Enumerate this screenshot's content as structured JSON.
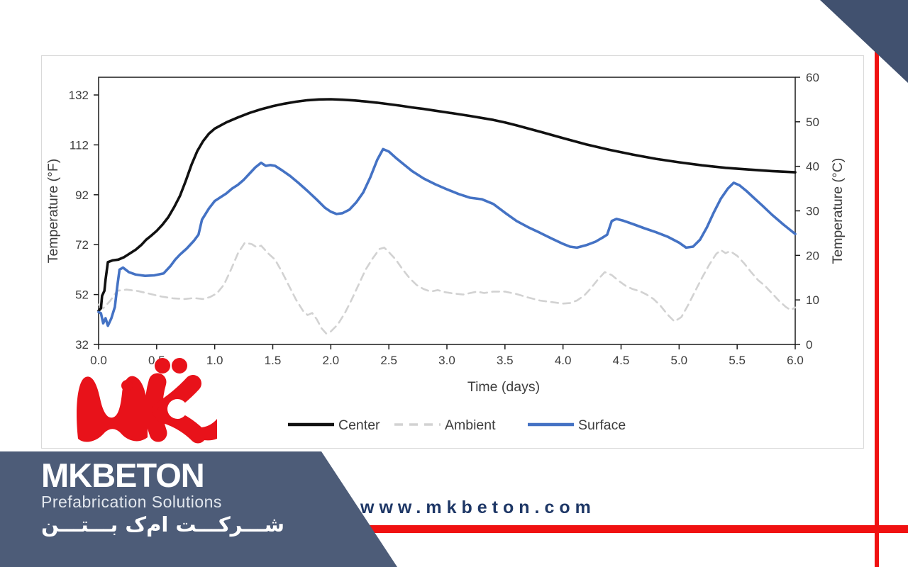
{
  "page": {
    "background": "#ffffff"
  },
  "decor": {
    "accent_red": "#f01111",
    "corner_triangle_color": "#41516f",
    "banner_color": "#4d5c78",
    "card_border_color": "#d9d9d9"
  },
  "logo": {
    "label": "MK logo",
    "color": "#e8121a"
  },
  "footer": {
    "brand": "MKBETON",
    "tagline": "Prefabrication Solutions",
    "persian_name": "شـــرکـــت ام‌ک بـــتـــن",
    "website": "www.mkbeton.com",
    "website_color": "#1e3766"
  },
  "chart_data": {
    "type": "line",
    "title": "",
    "xlabel": "Time (days)",
    "ylabel_left": "Temperature (°F)",
    "ylabel_right": "Temperature (°C)",
    "x_range": [
      0,
      6
    ],
    "y_left_range": [
      32,
      136.5
    ],
    "y_right_range": [
      0,
      60
    ],
    "x_tick_labels": [
      "0.0",
      "0.5",
      "1.0",
      "1.5",
      "2.0",
      "2.5",
      "3.0",
      "3.5",
      "4.0",
      "4.5",
      "5.0",
      "5.5",
      "6.0"
    ],
    "y_left_ticks": [
      32,
      52,
      72,
      92,
      112,
      132
    ],
    "y_right_ticks": [
      0,
      10,
      20,
      30,
      40,
      50,
      60
    ],
    "grid": false,
    "legend_position": "bottom",
    "y_units": "°F",
    "series": [
      {
        "name": "Ambient",
        "color": "#d2d2d2",
        "style": "dashed",
        "width": 2.6,
        "x": [
          0,
          0.04,
          0.1,
          0.16,
          0.24,
          0.34,
          0.44,
          0.54,
          0.64,
          0.74,
          0.82,
          0.9,
          0.96,
          1.02,
          1.08,
          1.14,
          1.2,
          1.26,
          1.32,
          1.36,
          1.4,
          1.46,
          1.52,
          1.58,
          1.64,
          1.7,
          1.76,
          1.8,
          1.84,
          1.88,
          1.92,
          1.96,
          2.0,
          2.06,
          2.12,
          2.18,
          2.24,
          2.3,
          2.36,
          2.42,
          2.46,
          2.5,
          2.56,
          2.62,
          2.68,
          2.74,
          2.8,
          2.86,
          2.92,
          2.98,
          3.06,
          3.14,
          3.2,
          3.26,
          3.32,
          3.4,
          3.5,
          3.6,
          3.7,
          3.8,
          3.9,
          4.0,
          4.06,
          4.12,
          4.18,
          4.24,
          4.3,
          4.36,
          4.42,
          4.48,
          4.54,
          4.6,
          4.66,
          4.72,
          4.78,
          4.84,
          4.9,
          4.96,
          5.02,
          5.08,
          5.14,
          5.2,
          5.26,
          5.32,
          5.36,
          5.4,
          5.44,
          5.5,
          5.56,
          5.62,
          5.68,
          5.74,
          5.8,
          5.86,
          5.92,
          5.96,
          6.0
        ],
        "y": [
          48,
          46.5,
          49.5,
          53.5,
          54,
          53.4,
          52.3,
          51.2,
          50.5,
          50.2,
          50.6,
          50.2,
          51,
          52.5,
          56,
          62,
          68.5,
          72.8,
          72.2,
          71,
          71.6,
          68.5,
          66,
          61,
          55.5,
          50,
          45.5,
          43.8,
          44.6,
          42,
          38.5,
          36.4,
          37.2,
          40,
          44.5,
          50,
          56,
          62,
          66.5,
          70.3,
          70.8,
          69,
          66,
          62,
          58.5,
          55.8,
          54.2,
          53.2,
          53.8,
          53,
          52.4,
          52,
          52.6,
          53.2,
          52.6,
          53.2,
          53.2,
          52.2,
          50.8,
          49.6,
          49,
          48.4,
          48.6,
          49.6,
          51.5,
          54.5,
          58,
          61,
          59.8,
          57.5,
          55.5,
          54.2,
          53.4,
          52,
          50.2,
          47.5,
          44,
          41.2,
          43,
          48,
          53.5,
          59,
          64,
          68.3,
          69.8,
          68.6,
          69.4,
          67.5,
          64.5,
          61,
          57.8,
          55.5,
          52.5,
          49.5,
          47,
          45.8,
          46.8
        ]
      },
      {
        "name": "Center",
        "color": "#111111",
        "style": "solid",
        "width": 3.6,
        "x": [
          0,
          0.02,
          0.03,
          0.05,
          0.06,
          0.08,
          0.12,
          0.17,
          0.22,
          0.27,
          0.32,
          0.37,
          0.41,
          0.45,
          0.5,
          0.55,
          0.6,
          0.65,
          0.7,
          0.75,
          0.8,
          0.85,
          0.9,
          0.95,
          1.0,
          1.1,
          1.2,
          1.3,
          1.4,
          1.5,
          1.6,
          1.7,
          1.8,
          1.9,
          2.0,
          2.1,
          2.2,
          2.3,
          2.4,
          2.5,
          2.6,
          2.7,
          2.8,
          2.9,
          3.0,
          3.2,
          3.4,
          3.5,
          3.6,
          3.8,
          4.0,
          4.2,
          4.4,
          4.6,
          4.8,
          5.0,
          5.2,
          5.4,
          5.6,
          5.8,
          6.0
        ],
        "y": [
          45.5,
          46.5,
          51.5,
          53.5,
          58,
          65,
          65.7,
          66,
          67,
          68.5,
          70,
          72,
          74,
          75.5,
          77.5,
          80,
          83,
          87,
          91.5,
          97.5,
          104,
          109.5,
          113.5,
          116.5,
          118.5,
          121,
          123,
          124.8,
          126.3,
          127.5,
          128.5,
          129.3,
          129.9,
          130.2,
          130.3,
          130.1,
          129.8,
          129.4,
          128.9,
          128.3,
          127.7,
          127,
          126.4,
          125.7,
          125,
          123.6,
          122,
          121,
          119.8,
          117.3,
          114.7,
          112.2,
          110,
          108.1,
          106.4,
          105,
          103.8,
          102.8,
          102.1,
          101.5,
          101
        ]
      },
      {
        "name": "Surface",
        "color": "#4472c4",
        "style": "solid",
        "width": 3.6,
        "x": [
          0,
          0.02,
          0.04,
          0.06,
          0.08,
          0.11,
          0.14,
          0.16,
          0.18,
          0.21,
          0.26,
          0.32,
          0.4,
          0.48,
          0.56,
          0.62,
          0.66,
          0.7,
          0.76,
          0.82,
          0.86,
          0.89,
          0.95,
          1.0,
          1.05,
          1.1,
          1.15,
          1.2,
          1.25,
          1.3,
          1.35,
          1.4,
          1.44,
          1.48,
          1.52,
          1.58,
          1.65,
          1.72,
          1.8,
          1.88,
          1.95,
          2.0,
          2.05,
          2.1,
          2.16,
          2.22,
          2.28,
          2.34,
          2.4,
          2.45,
          2.5,
          2.56,
          2.62,
          2.7,
          2.8,
          2.9,
          3.0,
          3.1,
          3.2,
          3.3,
          3.4,
          3.5,
          3.6,
          3.7,
          3.8,
          3.9,
          4.0,
          4.06,
          4.12,
          4.2,
          4.28,
          4.34,
          4.38,
          4.42,
          4.46,
          4.52,
          4.6,
          4.7,
          4.8,
          4.9,
          5.0,
          5.06,
          5.12,
          5.18,
          5.24,
          5.3,
          5.36,
          5.42,
          5.47,
          5.52,
          5.58,
          5.65,
          5.72,
          5.8,
          5.9,
          6.0
        ],
        "y": [
          45,
          44.5,
          40.5,
          42.5,
          39.5,
          42.5,
          47,
          55,
          62,
          62.8,
          61,
          60,
          59.5,
          59.7,
          60.5,
          63.5,
          66,
          68,
          70.5,
          73.5,
          76,
          82,
          86.5,
          89.5,
          91,
          92.5,
          94.5,
          96,
          98,
          100.5,
          103,
          104.8,
          103.6,
          103.9,
          103.6,
          101.8,
          99.5,
          96.8,
          93.5,
          90,
          86.8,
          85.2,
          84.3,
          84.6,
          86,
          89,
          93,
          99,
          106,
          110.3,
          109.3,
          106.8,
          104.5,
          101.5,
          98.5,
          96.2,
          94.2,
          92.3,
          90.8,
          90.2,
          88.3,
          84.8,
          81.5,
          79,
          76.8,
          74.5,
          72.3,
          71.2,
          70.8,
          71.8,
          73.2,
          74.8,
          76,
          81.5,
          82.3,
          81.6,
          80.3,
          78.6,
          77,
          75.2,
          72.8,
          70.8,
          71.2,
          74,
          79,
          85,
          90.5,
          94.5,
          96.8,
          95.8,
          93.5,
          90.5,
          87.5,
          84,
          80,
          76.3
        ]
      }
    ]
  }
}
